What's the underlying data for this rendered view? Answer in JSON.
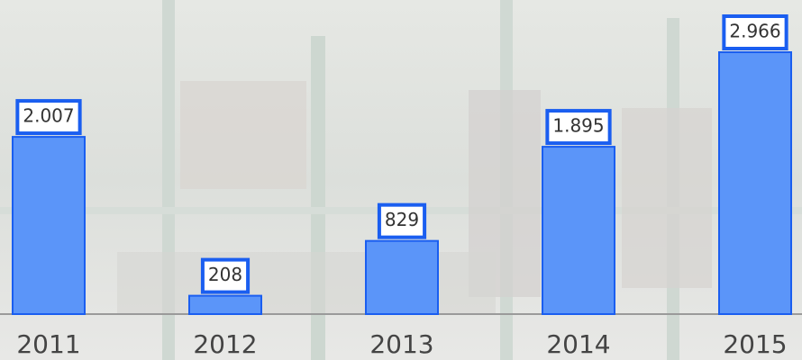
{
  "chart_data": {
    "type": "bar",
    "categories": [
      "2011",
      "2012",
      "2013",
      "2014",
      "2015"
    ],
    "values": [
      2007,
      208,
      829,
      1895,
      2966
    ],
    "value_labels": [
      "2.007",
      "208",
      "829",
      "1.895",
      "2.966"
    ],
    "color": "#5b95f9"
  }
}
